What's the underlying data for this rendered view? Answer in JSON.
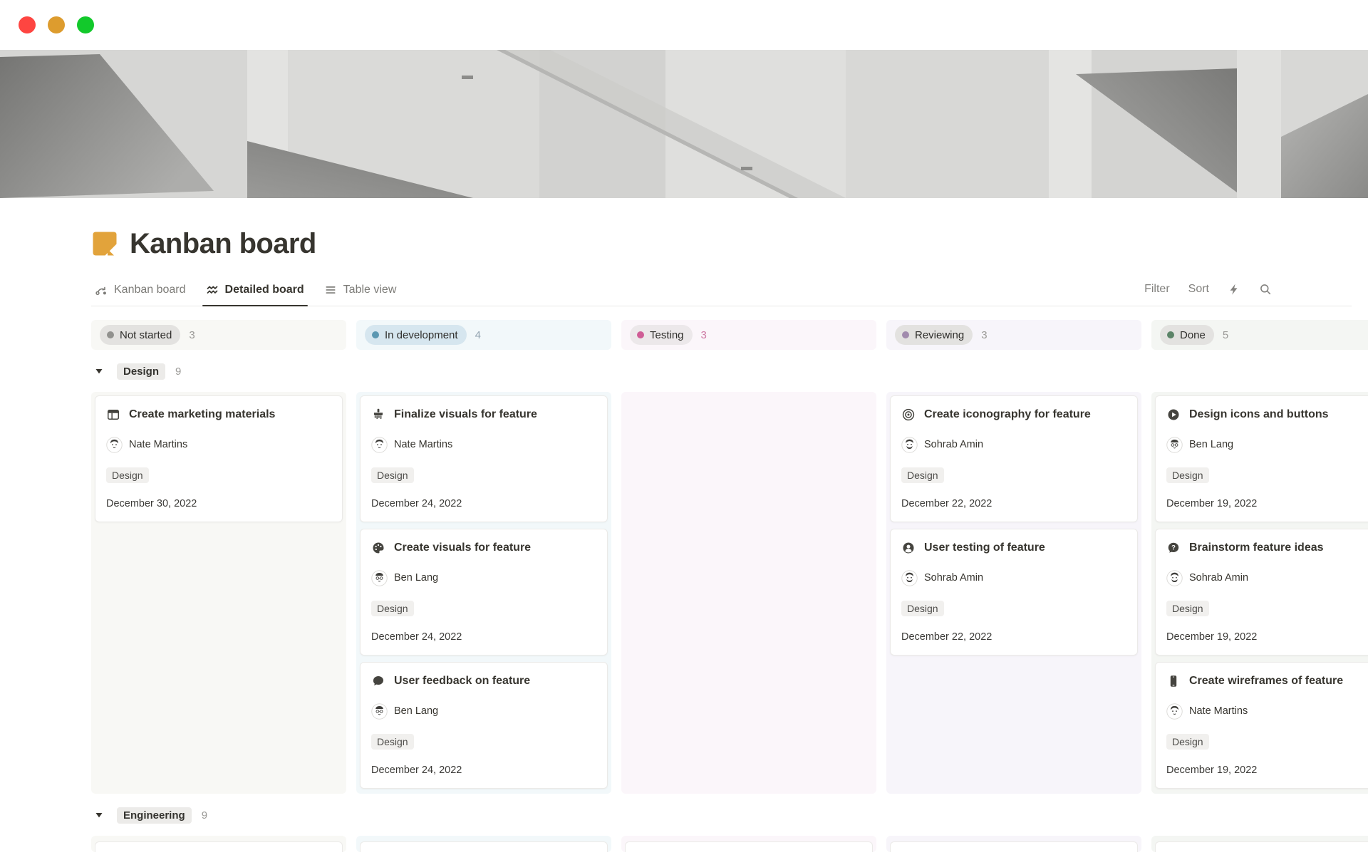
{
  "window": {
    "traffic_lights": [
      {
        "name": "close",
        "color": "#FE4541"
      },
      {
        "name": "minimize",
        "color": "#DD9C2E"
      },
      {
        "name": "zoom",
        "color": "#12C92B"
      }
    ]
  },
  "page": {
    "title": "Kanban board",
    "icon": "orange-note-icon",
    "icon_color": "#E2A33B"
  },
  "view_tabs": [
    {
      "label": "Kanban board",
      "icon": "flow-arrow-icon",
      "active": false
    },
    {
      "label": "Detailed board",
      "icon": "wave-icon",
      "active": true
    },
    {
      "label": "Table view",
      "icon": "list-lines-icon",
      "active": false
    }
  ],
  "toolbar": {
    "filter_label": "Filter",
    "sort_label": "Sort",
    "icons": [
      "lightning-icon",
      "search-icon"
    ]
  },
  "statuses": [
    {
      "id": "not_started",
      "label": "Not started",
      "count": "3",
      "dot": "#91918E",
      "pill_bg": "#E3E2E0",
      "count_color": "#9B9A97",
      "column_bg": "#F8F8F5"
    },
    {
      "id": "in_development",
      "label": "In development",
      "count": "4",
      "dot": "#5B97B1",
      "pill_bg": "#D6E6EF",
      "count_color": "#94A5B1",
      "column_bg": "#F2F8FA"
    },
    {
      "id": "testing",
      "label": "Testing",
      "count": "3",
      "dot": "#CF5D96",
      "pill_bg": "#ECE8EA",
      "count_color": "#CE79A3",
      "column_bg": "#FBF6FA"
    },
    {
      "id": "reviewing",
      "label": "Reviewing",
      "count": "3",
      "dot": "#A18BAD",
      "pill_bg": "#E3E2E0",
      "count_color": "#9B9A97",
      "column_bg": "#F7F5FA"
    },
    {
      "id": "done",
      "label": "Done",
      "count": "5",
      "dot": "#5C8468",
      "pill_bg": "#E3E2E0",
      "count_color": "#9B9A97",
      "column_bg": "#F4F6F3"
    }
  ],
  "groups": [
    {
      "label": "Design",
      "count": "9",
      "preview_only": false,
      "cards": {
        "not_started": [
          {
            "icon": "board-icon",
            "title": "Create marketing materials",
            "assignee": "Nate Martins",
            "avatar": "nate",
            "tag": "Design",
            "date": "December 30, 2022"
          }
        ],
        "in_development": [
          {
            "icon": "brush-icon",
            "title": "Finalize visuals for feature",
            "assignee": "Nate Martins",
            "avatar": "nate",
            "tag": "Design",
            "date": "December 24, 2022"
          },
          {
            "icon": "palette-icon",
            "title": "Create visuals for feature",
            "assignee": "Ben Lang",
            "avatar": "ben",
            "tag": "Design",
            "date": "December 24, 2022"
          },
          {
            "icon": "speech-bubble-icon",
            "title": "User feedback on feature",
            "assignee": "Ben Lang",
            "avatar": "ben",
            "tag": "Design",
            "date": "December 24, 2022"
          }
        ],
        "testing": [],
        "reviewing": [
          {
            "icon": "target-icon",
            "title": "Create iconography for feature",
            "assignee": "Sohrab Amin",
            "avatar": "sohrab",
            "tag": "Design",
            "date": "December 22, 2022"
          },
          {
            "icon": "user-circle-icon",
            "title": "User testing of feature",
            "assignee": "Sohrab Amin",
            "avatar": "sohrab",
            "tag": "Design",
            "date": "December 22, 2022"
          }
        ],
        "done": [
          {
            "icon": "play-icon",
            "title": "Design icons and buttons",
            "assignee": "Ben Lang",
            "avatar": "ben",
            "tag": "Design",
            "date": "December 19, 2022"
          },
          {
            "icon": "question-bubble-icon",
            "title": "Brainstorm feature ideas",
            "assignee": "Sohrab Amin",
            "avatar": "sohrab",
            "tag": "Design",
            "date": "December 19, 2022"
          },
          {
            "icon": "phone-icon",
            "title": "Create wireframes of feature",
            "assignee": "Nate Martins",
            "avatar": "nate",
            "tag": "Design",
            "date": "December 19, 2022"
          }
        ]
      }
    },
    {
      "label": "Engineering",
      "count": "9",
      "preview_only": true
    }
  ]
}
